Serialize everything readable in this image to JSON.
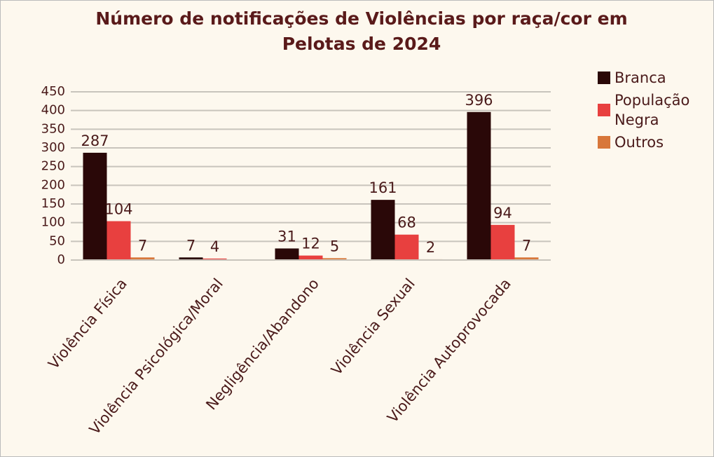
{
  "chart_data": {
    "type": "bar",
    "title": "Número de notificações de Violências por raça/cor em Pelotas de 2024",
    "categories": [
      "Violência Física",
      "Violência Psicológica/Moral",
      "Negligência/Abandono",
      "Violência Sexual",
      "Violência Autoprovocada"
    ],
    "series": [
      {
        "name": "Branca",
        "color": "#2a0808",
        "values": [
          287,
          7,
          31,
          161,
          396
        ]
      },
      {
        "name": "População Negra",
        "color": "#e8403f",
        "values": [
          104,
          4,
          12,
          68,
          94
        ]
      },
      {
        "name": "Outros",
        "color": "#d8773a",
        "values": [
          7,
          null,
          5,
          2,
          7
        ]
      }
    ],
    "ylim": [
      0,
      450
    ],
    "yticks": [
      0,
      50,
      100,
      150,
      200,
      250,
      300,
      350,
      400,
      450
    ],
    "grid": true,
    "legend": "right"
  }
}
